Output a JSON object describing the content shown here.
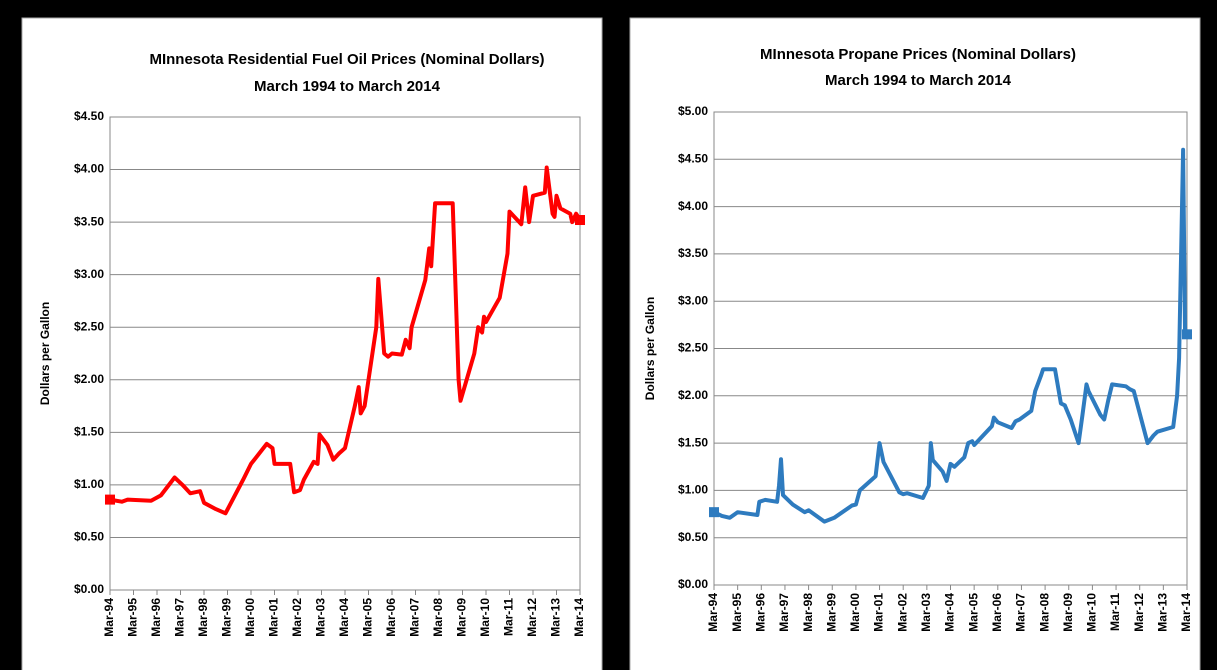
{
  "chart_data": [
    {
      "type": "line",
      "title": "MInnesota Residential Fuel Oil Prices (Nominal Dollars)",
      "subtitle": "March 1994 to March 2014",
      "y_label": "Dollars per Gallon",
      "color": "#ff0000",
      "grid": true,
      "xlim": [
        "1994-03",
        "2014-03"
      ],
      "xticks": [
        {
          "value": "1994-03",
          "label": "Mar-94"
        },
        {
          "value": "1995-03",
          "label": "Mar-95"
        },
        {
          "value": "1996-03",
          "label": "Mar-96"
        },
        {
          "value": "1997-03",
          "label": "Mar-97"
        },
        {
          "value": "1998-03",
          "label": "Mar-98"
        },
        {
          "value": "1999-03",
          "label": "Mar-99"
        },
        {
          "value": "2000-03",
          "label": "Mar-00"
        },
        {
          "value": "2001-03",
          "label": "Mar-01"
        },
        {
          "value": "2002-03",
          "label": "Mar-02"
        },
        {
          "value": "2003-03",
          "label": "Mar-03"
        },
        {
          "value": "2004-03",
          "label": "Mar-04"
        },
        {
          "value": "2005-03",
          "label": "Mar-05"
        },
        {
          "value": "2006-03",
          "label": "Mar-06"
        },
        {
          "value": "2007-03",
          "label": "Mar-07"
        },
        {
          "value": "2008-03",
          "label": "Mar-08"
        },
        {
          "value": "2009-03",
          "label": "Mar-09"
        },
        {
          "value": "2010-03",
          "label": "Mar-10"
        },
        {
          "value": "2011-03",
          "label": "Mar-11"
        },
        {
          "value": "2012-03",
          "label": "Mar-12"
        },
        {
          "value": "2013-03",
          "label": "Mar-13"
        },
        {
          "value": "2014-03",
          "label": "Mar-14"
        }
      ],
      "ylim": [
        0,
        4.5
      ],
      "yticks": [
        {
          "value": 0,
          "label": "$0.00"
        },
        {
          "value": 0.5,
          "label": "$0.50"
        },
        {
          "value": 1,
          "label": "$1.00"
        },
        {
          "value": 1.5,
          "label": "$1.50"
        },
        {
          "value": 2,
          "label": "$2.00"
        },
        {
          "value": 2.5,
          "label": "$2.50"
        },
        {
          "value": 3,
          "label": "$3.00"
        },
        {
          "value": 3.5,
          "label": "$3.50"
        },
        {
          "value": 4,
          "label": "$4.00"
        },
        {
          "value": 4.5,
          "label": "$4.50"
        }
      ],
      "x": [
        "1994-03",
        "1994-09",
        "1994-12",
        "1995-12",
        "1996-05",
        "1996-12",
        "1997-04",
        "1997-08",
        "1998-01",
        "1998-03",
        "1998-09",
        "1999-02",
        "1999-11",
        "2000-03",
        "2000-11",
        "2001-02",
        "2001-03",
        "2001-11",
        "2002-01",
        "2002-04",
        "2002-06",
        "2002-11",
        "2003-01",
        "2003-02",
        "2003-06",
        "2003-09",
        "2003-12",
        "2004-03",
        "2004-08",
        "2004-10",
        "2004-11",
        "2005-01",
        "2005-07",
        "2005-08",
        "2005-11",
        "2006-01",
        "2006-03",
        "2006-08",
        "2006-10",
        "2006-12",
        "2007-01",
        "2007-08",
        "2007-10",
        "2007-11",
        "2008-01",
        "2008-10",
        "2009-01",
        "2009-02",
        "2009-09",
        "2009-11",
        "2010-01",
        "2010-02",
        "2010-03",
        "2010-10",
        "2011-02",
        "2011-03",
        "2011-09",
        "2011-11",
        "2012-01",
        "2012-03",
        "2012-09",
        "2012-10",
        "2013-01",
        "2013-02",
        "2013-03",
        "2013-05",
        "2013-10",
        "2013-11",
        "2014-01",
        "2014-03"
      ],
      "values": [
        0.86,
        0.84,
        0.86,
        0.85,
        0.9,
        1.07,
        1.0,
        0.92,
        0.94,
        0.83,
        0.77,
        0.73,
        1.05,
        1.2,
        1.39,
        1.35,
        1.2,
        1.2,
        0.93,
        0.95,
        1.05,
        1.22,
        1.2,
        1.48,
        1.38,
        1.24,
        1.3,
        1.35,
        1.75,
        1.93,
        1.68,
        1.75,
        2.5,
        2.96,
        2.25,
        2.22,
        2.25,
        2.24,
        2.38,
        2.3,
        2.5,
        2.95,
        3.25,
        3.08,
        3.68,
        3.68,
        2.0,
        1.8,
        2.25,
        2.5,
        2.45,
        2.6,
        2.55,
        2.78,
        3.2,
        3.6,
        3.48,
        3.83,
        3.5,
        3.75,
        3.78,
        4.02,
        3.58,
        3.55,
        3.75,
        3.63,
        3.58,
        3.5,
        3.58,
        3.52
      ]
    },
    {
      "type": "line",
      "title": "MInnesota Propane Prices (Nominal Dollars)",
      "subtitle": "March 1994 to March 2014",
      "y_label": "Dollars per Gallon",
      "color": "#2e7bbf",
      "grid": true,
      "xlim": [
        "1994-03",
        "2014-03"
      ],
      "xticks": [
        {
          "value": "1994-03",
          "label": "Mar-94"
        },
        {
          "value": "1995-03",
          "label": "Mar-95"
        },
        {
          "value": "1996-03",
          "label": "Mar-96"
        },
        {
          "value": "1997-03",
          "label": "Mar-97"
        },
        {
          "value": "1998-03",
          "label": "Mar-98"
        },
        {
          "value": "1999-03",
          "label": "Mar-99"
        },
        {
          "value": "2000-03",
          "label": "Mar-00"
        },
        {
          "value": "2001-03",
          "label": "Mar-01"
        },
        {
          "value": "2002-03",
          "label": "Mar-02"
        },
        {
          "value": "2003-03",
          "label": "Mar-03"
        },
        {
          "value": "2004-03",
          "label": "Mar-04"
        },
        {
          "value": "2005-03",
          "label": "Mar-05"
        },
        {
          "value": "2006-03",
          "label": "Mar-06"
        },
        {
          "value": "2007-03",
          "label": "Mar-07"
        },
        {
          "value": "2008-03",
          "label": "Mar-08"
        },
        {
          "value": "2009-03",
          "label": "Mar-09"
        },
        {
          "value": "2010-03",
          "label": "Mar-10"
        },
        {
          "value": "2011-03",
          "label": "Mar-11"
        },
        {
          "value": "2012-03",
          "label": "Mar-12"
        },
        {
          "value": "2013-03",
          "label": "Mar-13"
        },
        {
          "value": "2014-03",
          "label": "Mar-14"
        }
      ],
      "ylim": [
        0,
        5
      ],
      "yticks": [
        {
          "value": 0,
          "label": "$0.00"
        },
        {
          "value": 0.5,
          "label": "$0.50"
        },
        {
          "value": 1,
          "label": "$1.00"
        },
        {
          "value": 1.5,
          "label": "$1.50"
        },
        {
          "value": 2,
          "label": "$2.00"
        },
        {
          "value": 2.5,
          "label": "$2.50"
        },
        {
          "value": 3,
          "label": "$3.00"
        },
        {
          "value": 3.5,
          "label": "$3.50"
        },
        {
          "value": 4,
          "label": "$4.00"
        },
        {
          "value": 4.5,
          "label": "$4.50"
        },
        {
          "value": 5,
          "label": "$5.00"
        }
      ],
      "x": [
        "1994-03",
        "1994-07",
        "1994-11",
        "1995-03",
        "1996-01",
        "1996-02",
        "1996-05",
        "1996-11",
        "1996-12",
        "1997-01",
        "1997-02",
        "1997-07",
        "1998-01",
        "1998-03",
        "1998-11",
        "1999-04",
        "2000-01",
        "2000-03",
        "2000-05",
        "2001-01",
        "2001-03",
        "2001-05",
        "2002-01",
        "2002-03",
        "2002-05",
        "2003-01",
        "2003-04",
        "2003-05",
        "2003-06",
        "2003-11",
        "2004-01",
        "2004-03",
        "2004-05",
        "2004-10",
        "2004-12",
        "2005-02",
        "2005-03",
        "2005-12",
        "2006-01",
        "2006-03",
        "2006-10",
        "2006-12",
        "2007-02",
        "2007-08",
        "2007-10",
        "2008-01",
        "2008-02",
        "2008-08",
        "2008-11",
        "2009-01",
        "2009-04",
        "2009-08",
        "2009-10",
        "2009-12",
        "2010-01",
        "2010-07",
        "2010-09",
        "2010-11",
        "2011-01",
        "2011-08",
        "2011-10",
        "2011-12",
        "2012-07",
        "2012-10",
        "2012-12",
        "2013-08",
        "2013-10",
        "2013-11",
        "2014-01",
        "2014-02",
        "2014-03"
      ],
      "values": [
        0.77,
        0.73,
        0.71,
        0.77,
        0.74,
        0.88,
        0.9,
        0.88,
        1.05,
        1.33,
        0.95,
        0.85,
        0.77,
        0.79,
        0.67,
        0.71,
        0.84,
        0.85,
        1.0,
        1.15,
        1.5,
        1.3,
        0.98,
        0.96,
        0.97,
        0.92,
        1.05,
        1.5,
        1.32,
        1.2,
        1.1,
        1.28,
        1.25,
        1.35,
        1.5,
        1.52,
        1.48,
        1.68,
        1.77,
        1.72,
        1.66,
        1.73,
        1.75,
        1.84,
        2.05,
        2.22,
        2.28,
        2.28,
        1.92,
        1.9,
        1.75,
        1.5,
        1.8,
        2.12,
        2.05,
        1.8,
        1.75,
        1.95,
        2.12,
        2.1,
        2.07,
        2.05,
        1.5,
        1.58,
        1.62,
        1.67,
        2.0,
        2.4,
        4.6,
        2.7,
        2.65
      ]
    }
  ]
}
